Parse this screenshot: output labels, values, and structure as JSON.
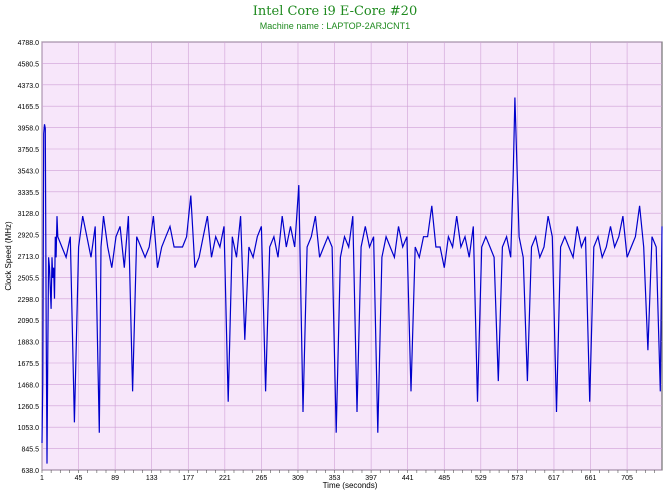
{
  "chart_data": {
    "type": "line",
    "title": "Intel Core i9 E-Core #20",
    "subtitle": "Machine name : LAPTOP-2ARJCNT1",
    "xlabel": "Time (seconds)",
    "ylabel": "Clock Speed (MHz)",
    "xlim": [
      1,
      747
    ],
    "ylim": [
      638.0,
      4788.0
    ],
    "yticks": [
      "638.0",
      "845.5",
      "1053.0",
      "1260.5",
      "1468.0",
      "1675.5",
      "1883.0",
      "2090.5",
      "2298.0",
      "2505.5",
      "2713.0",
      "2920.5",
      "3128.0",
      "3335.5",
      "3543.0",
      "3750.5",
      "3958.0",
      "4165.5",
      "4373.0",
      "4580.5",
      "4788.0"
    ],
    "xticks": [
      "1",
      "45",
      "89",
      "133",
      "177",
      "221",
      "265",
      "309",
      "353",
      "397",
      "441",
      "485",
      "529",
      "573",
      "617",
      "661",
      "705"
    ],
    "grid": true,
    "series": [
      {
        "color": "#0000cc",
        "x": [
          1,
          2,
          3,
          4,
          5,
          6,
          7,
          8,
          9,
          10,
          11,
          12,
          13,
          14,
          15,
          16,
          17,
          18,
          19,
          20,
          25,
          30,
          35,
          40,
          45,
          50,
          55,
          60,
          65,
          70,
          72,
          75,
          80,
          85,
          90,
          95,
          100,
          105,
          110,
          115,
          120,
          125,
          130,
          135,
          140,
          145,
          150,
          155,
          160,
          165,
          170,
          175,
          180,
          185,
          190,
          195,
          200,
          205,
          210,
          215,
          220,
          225,
          230,
          235,
          240,
          245,
          250,
          255,
          260,
          265,
          270,
          275,
          280,
          285,
          290,
          295,
          300,
          305,
          310,
          315,
          320,
          325,
          330,
          335,
          340,
          345,
          350,
          355,
          360,
          365,
          370,
          375,
          380,
          385,
          390,
          395,
          400,
          405,
          410,
          415,
          420,
          425,
          430,
          435,
          440,
          445,
          450,
          455,
          460,
          465,
          470,
          475,
          480,
          485,
          490,
          495,
          500,
          505,
          510,
          515,
          520,
          525,
          530,
          535,
          540,
          545,
          550,
          555,
          560,
          565,
          568,
          570,
          572,
          575,
          580,
          585,
          590,
          595,
          600,
          605,
          610,
          615,
          620,
          625,
          630,
          635,
          640,
          645,
          650,
          655,
          660,
          665,
          670,
          675,
          680,
          685,
          690,
          695,
          700,
          705,
          710,
          715,
          720,
          725,
          730,
          735,
          740,
          745,
          747
        ],
        "y": [
          900,
          1500,
          3900,
          3990,
          3950,
          2000,
          700,
          1800,
          2700,
          2600,
          2400,
          2200,
          2700,
          2500,
          2600,
          2300,
          2900,
          2700,
          3100,
          2900,
          2800,
          2700,
          2900,
          1100,
          2800,
          3100,
          2900,
          2700,
          3000,
          1000,
          2800,
          3100,
          2800,
          2600,
          2900,
          3000,
          2600,
          3100,
          1400,
          2900,
          2800,
          2700,
          2800,
          3100,
          2600,
          2800,
          2900,
          3000,
          2800,
          2800,
          2800,
          2900,
          3300,
          2600,
          2700,
          2900,
          3100,
          2700,
          2900,
          2800,
          3000,
          1300,
          2900,
          2700,
          3100,
          1900,
          2800,
          2700,
          2900,
          3000,
          1400,
          2800,
          2900,
          2700,
          3100,
          2800,
          3000,
          2800,
          3400,
          1200,
          2800,
          2900,
          3100,
          2700,
          2800,
          2900,
          2800,
          1000,
          2700,
          2900,
          2800,
          3100,
          1200,
          2800,
          3000,
          2800,
          2900,
          1000,
          2700,
          2900,
          2800,
          2700,
          3000,
          2800,
          2900,
          1400,
          2800,
          2700,
          2900,
          2900,
          3200,
          2800,
          2800,
          2600,
          2900,
          2800,
          3100,
          2800,
          2900,
          2700,
          3000,
          1300,
          2800,
          2900,
          2800,
          2700,
          1500,
          2800,
          2900,
          2700,
          3500,
          4250,
          3700,
          2900,
          2700,
          1500,
          2800,
          2900,
          2700,
          2800,
          3100,
          2900,
          1200,
          2800,
          2900,
          2800,
          2700,
          3000,
          2800,
          2900,
          1300,
          2800,
          2900,
          2700,
          2800,
          3000,
          2800,
          2900,
          3100,
          2700,
          2800,
          2900,
          3200,
          2800,
          1800,
          2900,
          2800,
          1400,
          3000
        ]
      }
    ]
  }
}
